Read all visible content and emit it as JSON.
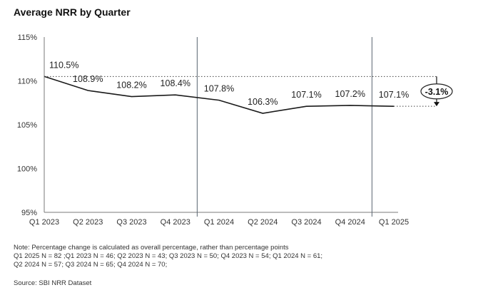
{
  "chart_data": {
    "type": "line",
    "title": "Average NRR by Quarter",
    "categories": [
      "Q1 2023",
      "Q2 2023",
      "Q3 2023",
      "Q4 2023",
      "Q1 2024",
      "Q2 2024",
      "Q3 2024",
      "Q4 2024",
      "Q1 2025"
    ],
    "values": [
      110.5,
      108.9,
      108.2,
      108.4,
      107.8,
      106.3,
      107.1,
      107.2,
      107.1
    ],
    "data_labels": [
      "110.5%",
      "108.9%",
      "108.2%",
      "108.4%",
      "107.8%",
      "106.3%",
      "107.1%",
      "107.2%",
      "107.1%"
    ],
    "yticks": [
      "115%",
      "110%",
      "105%",
      "100%",
      "95%"
    ],
    "ylim": [
      95,
      115
    ],
    "ytick_values": [
      115,
      110,
      105,
      100,
      95
    ],
    "year_dividers_after": [
      "Q4 2023",
      "Q4 2024"
    ],
    "change_annotation": "-3.1%",
    "colors": {
      "line": "#1a1a1a",
      "divider": "#5a6470",
      "axis": "#7a7a7a"
    }
  },
  "notes": [
    "Note: Percentage change is calculated as overall percentage, rather than percentage points",
    "Q1 2025 N = 82 ;Q1 2023 N = 46; Q2 2023 N = 43; Q3 2023 N = 50; Q4 2023 N = 54; Q1 2024 N = 61;",
    "Q2 2024 N = 57; Q3 2024 N = 65; Q4 2024 N = 70;"
  ],
  "source": "Source: SBI NRR Dataset"
}
